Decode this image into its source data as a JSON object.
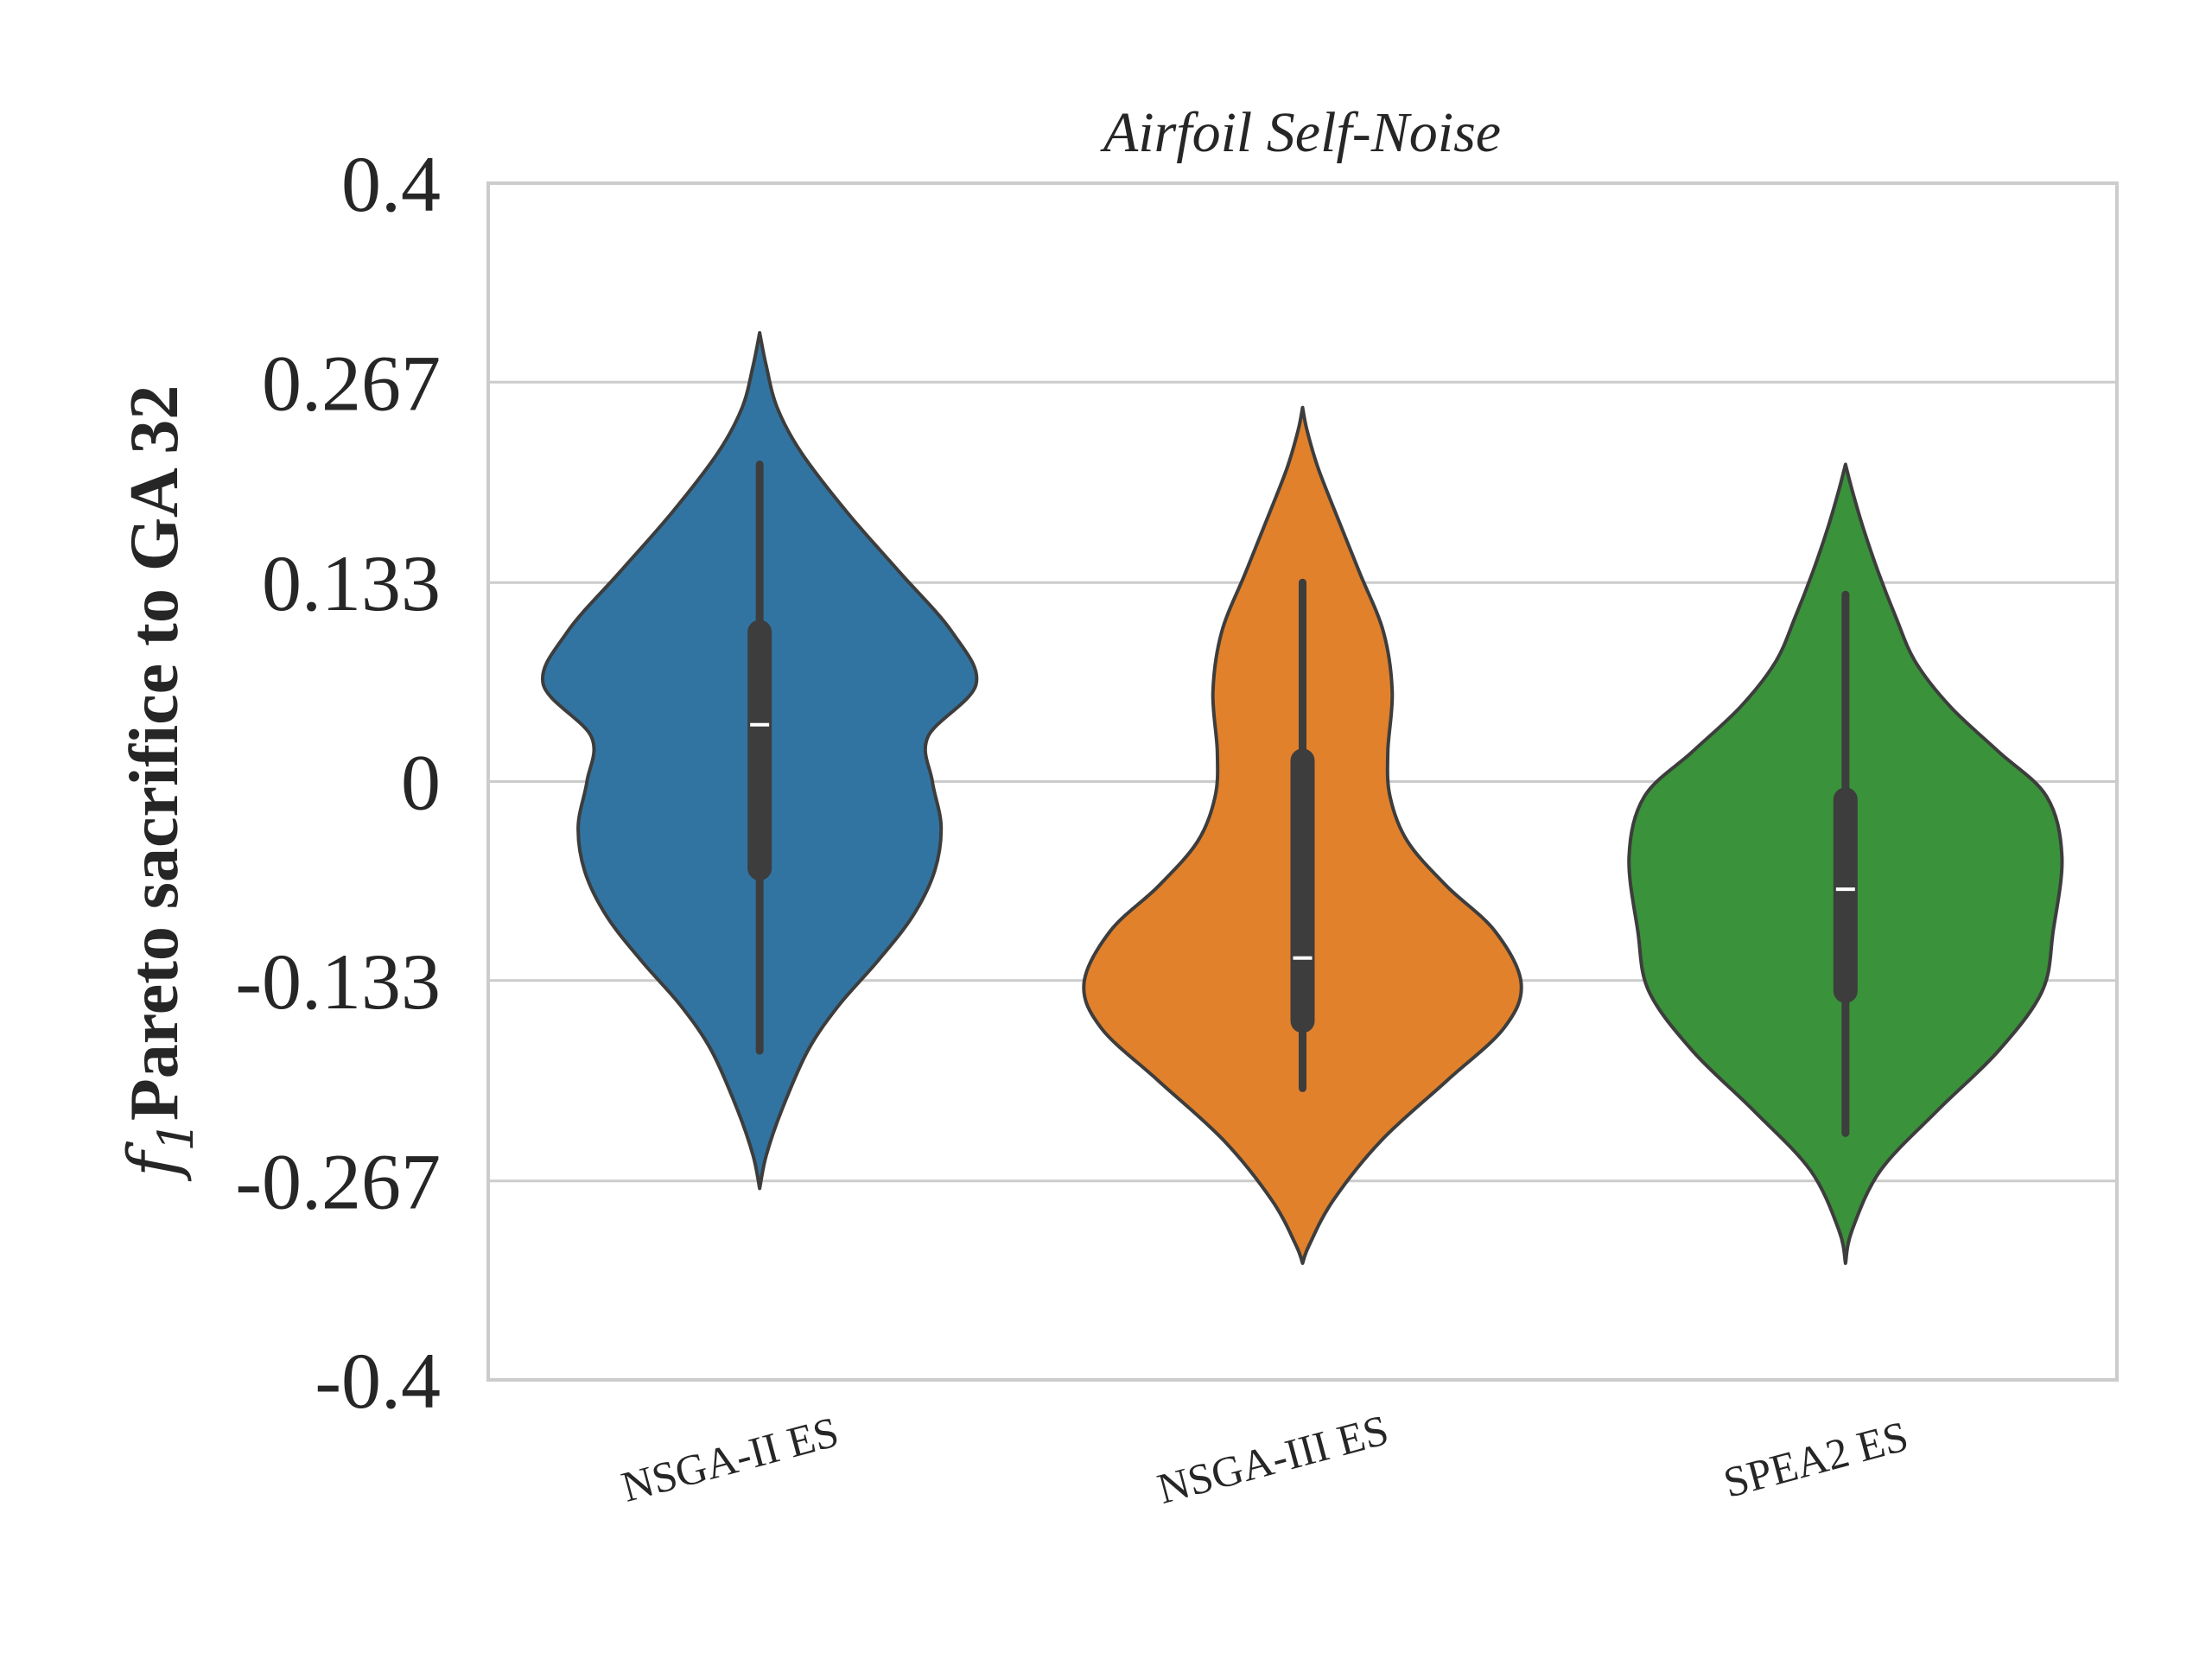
{
  "chart_data": {
    "type": "violin",
    "title": "Airfoil Self-Noise",
    "ylabel": {
      "variable": "f",
      "subscript": "1",
      "text": "Pareto sacrifice to GA 32"
    },
    "xlabel": "",
    "ylim": [
      -0.4,
      0.4
    ],
    "yticks": [
      0.4,
      0.267,
      0.133,
      0,
      -0.133,
      -0.267,
      -0.4
    ],
    "ytick_labels": [
      "0.4",
      "0.267",
      "0.133",
      "0",
      "-0.133",
      "-0.267",
      "-0.4"
    ],
    "grid": true,
    "categories": [
      "NSGA-II ES",
      "NSGA-III ES",
      "SPEA2 ES"
    ],
    "colors": [
      "#3274a1",
      "#e1812c",
      "#3a923a"
    ],
    "outline_color": "#3d3d3d",
    "violins": [
      {
        "name": "NSGA-II ES",
        "median": 0.038,
        "q1": -0.058,
        "q3": 0.1,
        "whisker_low": -0.18,
        "whisker_high": 0.212,
        "profile": [
          [
            -0.272,
            0.0
          ],
          [
            -0.25,
            0.03
          ],
          [
            -0.22,
            0.1
          ],
          [
            -0.18,
            0.22
          ],
          [
            -0.15,
            0.36
          ],
          [
            -0.12,
            0.54
          ],
          [
            -0.09,
            0.7
          ],
          [
            -0.06,
            0.8
          ],
          [
            -0.03,
            0.83
          ],
          [
            0.0,
            0.79
          ],
          [
            0.03,
            0.77
          ],
          [
            0.065,
            0.99
          ],
          [
            0.1,
            0.88
          ],
          [
            0.14,
            0.64
          ],
          [
            0.18,
            0.4
          ],
          [
            0.22,
            0.19
          ],
          [
            0.25,
            0.08
          ],
          [
            0.278,
            0.03
          ],
          [
            0.3,
            0.0
          ]
        ]
      },
      {
        "name": "NSGA-III ES",
        "median": -0.118,
        "q1": -0.16,
        "q3": 0.014,
        "whisker_low": -0.205,
        "whisker_high": 0.133,
        "profile": [
          [
            -0.322,
            0.0
          ],
          [
            -0.31,
            0.03
          ],
          [
            -0.28,
            0.14
          ],
          [
            -0.24,
            0.36
          ],
          [
            -0.2,
            0.66
          ],
          [
            -0.165,
            0.92
          ],
          [
            -0.135,
            1.0
          ],
          [
            -0.1,
            0.88
          ],
          [
            -0.07,
            0.66
          ],
          [
            -0.04,
            0.48
          ],
          [
            -0.01,
            0.4
          ],
          [
            0.02,
            0.39
          ],
          [
            0.06,
            0.41
          ],
          [
            0.1,
            0.37
          ],
          [
            0.14,
            0.26
          ],
          [
            0.18,
            0.15
          ],
          [
            0.21,
            0.07
          ],
          [
            0.235,
            0.02
          ],
          [
            0.25,
            0.0
          ]
        ]
      },
      {
        "name": "SPEA2 ES",
        "median": -0.072,
        "q1": -0.14,
        "q3": -0.012,
        "whisker_low": -0.235,
        "whisker_high": 0.125,
        "profile": [
          [
            -0.322,
            0.0
          ],
          [
            -0.3,
            0.03
          ],
          [
            -0.26,
            0.16
          ],
          [
            -0.22,
            0.42
          ],
          [
            -0.18,
            0.7
          ],
          [
            -0.14,
            0.9
          ],
          [
            -0.1,
            0.95
          ],
          [
            -0.05,
            0.99
          ],
          [
            -0.01,
            0.92
          ],
          [
            0.02,
            0.7
          ],
          [
            0.05,
            0.48
          ],
          [
            0.08,
            0.32
          ],
          [
            0.11,
            0.23
          ],
          [
            0.14,
            0.15
          ],
          [
            0.17,
            0.08
          ],
          [
            0.195,
            0.03
          ],
          [
            0.212,
            0.0
          ]
        ]
      }
    ]
  }
}
